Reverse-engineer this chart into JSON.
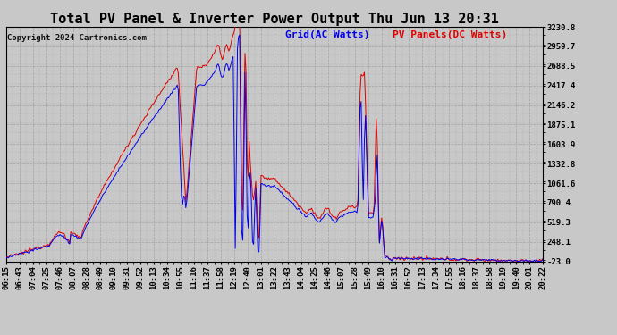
{
  "title": "Total PV Panel & Inverter Power Output Thu Jun 13 20:31",
  "copyright": "Copyright 2024 Cartronics.com",
  "legend_blue": "Grid(AC Watts)",
  "legend_red": "PV Panels(DC Watts)",
  "yticks": [
    -23.0,
    248.1,
    519.3,
    790.4,
    1061.6,
    1332.8,
    1603.9,
    1875.1,
    2146.2,
    2417.4,
    2688.5,
    2959.7,
    3230.8
  ],
  "ylim": [
    -23.0,
    3230.8
  ],
  "bg_color": "#c8c8c8",
  "plot_bg_color": "#c8c8c8",
  "grid_color": "#999999",
  "blue_color": "#0000ee",
  "red_color": "#dd0000",
  "title_color": "#000000",
  "title_fontsize": 11,
  "label_fontsize": 6.5,
  "copyright_fontsize": 6.5,
  "legend_fontsize": 8,
  "time_labels": [
    "06:15",
    "06:43",
    "07:04",
    "07:25",
    "07:46",
    "08:07",
    "08:28",
    "08:49",
    "09:10",
    "09:31",
    "09:52",
    "10:13",
    "10:34",
    "10:55",
    "11:16",
    "11:37",
    "11:58",
    "12:19",
    "12:40",
    "13:01",
    "13:22",
    "13:43",
    "14:04",
    "14:25",
    "14:46",
    "15:07",
    "15:28",
    "15:49",
    "16:10",
    "16:31",
    "16:52",
    "17:13",
    "17:34",
    "17:55",
    "18:16",
    "18:37",
    "18:58",
    "19:19",
    "19:40",
    "20:01",
    "20:22"
  ]
}
